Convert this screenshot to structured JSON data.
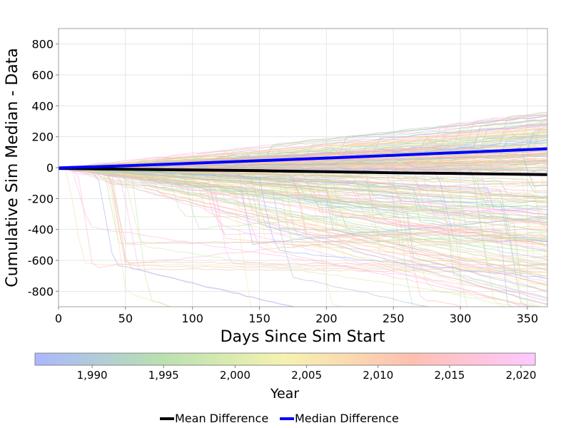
{
  "chart_data": {
    "type": "line",
    "xlabel": "Days Since Sim Start",
    "ylabel": "Cumulative Sim Median - Data",
    "xlim": [
      0,
      365
    ],
    "ylim": [
      -900,
      900
    ],
    "x_ticks": [
      0,
      50,
      100,
      150,
      200,
      250,
      300,
      350
    ],
    "y_ticks": [
      -800,
      -600,
      -400,
      -200,
      0,
      200,
      400,
      600,
      800
    ],
    "x_tick_labels": [
      "0",
      "50",
      "100",
      "150",
      "200",
      "250",
      "300",
      "350"
    ],
    "y_tick_labels": [
      "-800",
      "-600",
      "-400",
      "-200",
      "0",
      "200",
      "400",
      "600",
      "800"
    ],
    "grid": true,
    "series": [
      {
        "name": "Mean Difference",
        "color": "#000000",
        "x": [
          0,
          50,
          100,
          150,
          200,
          250,
          300,
          365
        ],
        "values": [
          -5,
          -10,
          -15,
          -20,
          -27,
          -33,
          -38,
          -45
        ]
      },
      {
        "name": "Median Difference",
        "color": "#0000ff",
        "x": [
          0,
          50,
          100,
          150,
          200,
          250,
          300,
          365
        ],
        "values": [
          -2,
          12,
          28,
          45,
          62,
          80,
          98,
          122
        ]
      }
    ],
    "ensemble": {
      "description_note": "",
      "colormap": [
        "#8fa8ff",
        "#a8d8a0",
        "#f5f0a0",
        "#ffb0a0",
        "#ffb0ff"
      ]
    },
    "colorbar": {
      "label": "Year",
      "range": [
        1986,
        2021
      ],
      "ticks": [
        1990,
        1995,
        2000,
        2005,
        2010,
        2015,
        2020
      ],
      "tick_labels": [
        "1,990",
        "1,995",
        "2,000",
        "2,005",
        "2,010",
        "2,015",
        "2,020"
      ],
      "colors": [
        "#aab8ff",
        "#b8e0b0",
        "#f5f3b0",
        "#ffc0b0",
        "#ffc8ff"
      ]
    },
    "legend": {
      "placement": "bottom",
      "entries": [
        "Mean Difference",
        "Median Difference"
      ]
    }
  }
}
